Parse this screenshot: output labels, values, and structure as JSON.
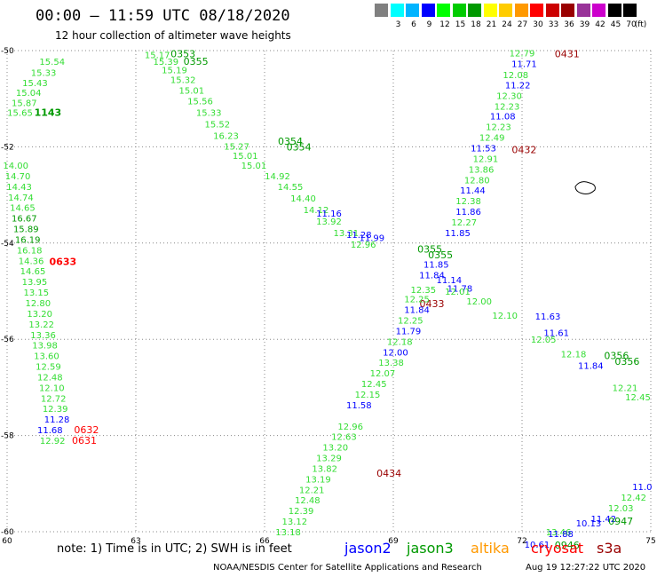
{
  "header": {
    "title": "00:00 – 11:59 UTC 08/18/2020",
    "subtitle": "12 hour collection of altimeter wave heights"
  },
  "legend": {
    "unit": "(ft)",
    "bins": [
      {
        "label": "",
        "color": "#808080"
      },
      {
        "label": "3",
        "color": "#00ffff"
      },
      {
        "label": "6",
        "color": "#00b4ff"
      },
      {
        "label": "9",
        "color": "#0000ff"
      },
      {
        "label": "12",
        "color": "#00ff00"
      },
      {
        "label": "15",
        "color": "#00cc00"
      },
      {
        "label": "18",
        "color": "#009900"
      },
      {
        "label": "21",
        "color": "#ffff00"
      },
      {
        "label": "24",
        "color": "#ffcc00"
      },
      {
        "label": "27",
        "color": "#ff9900"
      },
      {
        "label": "30",
        "color": "#ff0000"
      },
      {
        "label": "33",
        "color": "#cc0000"
      },
      {
        "label": "36",
        "color": "#990000"
      },
      {
        "label": "39",
        "color": "#993399"
      },
      {
        "label": "42",
        "color": "#cc00cc"
      },
      {
        "label": "45",
        "color": "#000000"
      },
      {
        "label": "70",
        "color": "#000000"
      }
    ]
  },
  "axes": {
    "lon_ticks": [
      "60",
      "63",
      "66",
      "69",
      "72",
      "75"
    ],
    "lat_ticks": [
      "-50",
      "-52",
      "-54",
      "-56",
      "-58",
      "-60"
    ],
    "lon_range": [
      60,
      75
    ],
    "lat_range": [
      -60,
      -50
    ]
  },
  "colors": {
    "jason2": "#0000ff",
    "jason3": "#009900",
    "altika": "#ff9900",
    "cryosat": "#ff0000",
    "s3a": "#990000",
    "light": "#33dd33"
  },
  "tracks": [
    {
      "color": "light",
      "pts": [
        {
          "lon": 61.05,
          "lat": -50.22,
          "v": "15.54"
        },
        {
          "lon": 60.85,
          "lat": -50.45,
          "v": "15.33"
        },
        {
          "lon": 60.65,
          "lat": -50.66,
          "v": "15.43"
        },
        {
          "lon": 60.5,
          "lat": -50.87,
          "v": "15.04"
        },
        {
          "lon": 60.4,
          "lat": -51.08,
          "v": "15.87"
        },
        {
          "lon": 60.3,
          "lat": -51.28,
          "v": "15.65"
        }
      ]
    },
    {
      "color": "jason3",
      "pts": [
        {
          "lon": 60.95,
          "lat": -51.28,
          "v": "1143",
          "bold": true
        }
      ]
    },
    {
      "color": "light",
      "pts": [
        {
          "lon": 60.2,
          "lat": -52.38,
          "v": "14.00"
        },
        {
          "lon": 60.25,
          "lat": -52.6,
          "v": "14.70"
        },
        {
          "lon": 60.28,
          "lat": -52.82,
          "v": "14.43"
        },
        {
          "lon": 60.32,
          "lat": -53.04,
          "v": "14.74"
        },
        {
          "lon": 60.36,
          "lat": -53.26,
          "v": "14.65"
        }
      ]
    },
    {
      "color": "jason3",
      "pts": [
        {
          "lon": 60.4,
          "lat": -53.48,
          "v": "16.67"
        },
        {
          "lon": 60.44,
          "lat": -53.7,
          "v": "15.89"
        },
        {
          "lon": 60.48,
          "lat": -53.92,
          "v": "16.19"
        }
      ]
    },
    {
      "color": "light",
      "pts": [
        {
          "lon": 60.52,
          "lat": -54.14,
          "v": "16.18"
        },
        {
          "lon": 60.56,
          "lat": -54.36,
          "v": "14.36"
        },
        {
          "lon": 60.6,
          "lat": -54.58,
          "v": "14.65"
        },
        {
          "lon": 60.64,
          "lat": -54.8,
          "v": "13.95"
        },
        {
          "lon": 60.68,
          "lat": -55.02,
          "v": "13.15"
        },
        {
          "lon": 60.72,
          "lat": -55.24,
          "v": "12.80"
        },
        {
          "lon": 60.76,
          "lat": -55.46,
          "v": "13.20"
        },
        {
          "lon": 60.8,
          "lat": -55.68,
          "v": "13.22"
        },
        {
          "lon": 60.84,
          "lat": -55.9,
          "v": "13.36"
        },
        {
          "lon": 60.88,
          "lat": -56.12,
          "v": "13.98"
        },
        {
          "lon": 60.92,
          "lat": -56.34,
          "v": "13.60"
        },
        {
          "lon": 60.96,
          "lat": -56.56,
          "v": "12.59"
        },
        {
          "lon": 61.0,
          "lat": -56.78,
          "v": "12.48"
        },
        {
          "lon": 61.04,
          "lat": -57.0,
          "v": "12.10"
        },
        {
          "lon": 61.08,
          "lat": -57.22,
          "v": "12.72"
        },
        {
          "lon": 61.12,
          "lat": -57.44,
          "v": "12.39"
        }
      ]
    },
    {
      "color": "jason2",
      "pts": [
        {
          "lon": 61.16,
          "lat": -57.66,
          "v": "11.28"
        },
        {
          "lon": 61.0,
          "lat": -57.88,
          "v": "11.68"
        }
      ]
    },
    {
      "color": "light",
      "pts": [
        {
          "lon": 61.06,
          "lat": -58.1,
          "v": "12.92"
        }
      ]
    },
    {
      "color": "cryosat",
      "pts": [
        {
          "lon": 61.3,
          "lat": -54.38,
          "v": "0633",
          "bold": true
        },
        {
          "lon": 61.85,
          "lat": -57.88,
          "v": "0632"
        },
        {
          "lon": 61.8,
          "lat": -58.1,
          "v": "0631"
        }
      ]
    },
    {
      "color": "light",
      "pts": [
        {
          "lon": 63.5,
          "lat": -50.08,
          "v": "15.17"
        },
        {
          "lon": 63.7,
          "lat": -50.22,
          "v": "15.39"
        },
        {
          "lon": 63.9,
          "lat": -50.4,
          "v": "15.19"
        },
        {
          "lon": 64.1,
          "lat": -50.6,
          "v": "15.32"
        },
        {
          "lon": 64.3,
          "lat": -50.82,
          "v": "15.01"
        },
        {
          "lon": 64.5,
          "lat": -51.04,
          "v": "15.56"
        },
        {
          "lon": 64.7,
          "lat": -51.28,
          "v": "15.33"
        },
        {
          "lon": 64.9,
          "lat": -51.52,
          "v": "15.52"
        },
        {
          "lon": 65.1,
          "lat": -51.76,
          "v": "16.23"
        },
        {
          "lon": 65.35,
          "lat": -51.98,
          "v": "15.27"
        },
        {
          "lon": 65.55,
          "lat": -52.18,
          "v": "15.01"
        },
        {
          "lon": 65.75,
          "lat": -52.38,
          "v": "15.01"
        }
      ]
    },
    {
      "color": "jason3",
      "pts": [
        {
          "lon": 64.1,
          "lat": -50.06,
          "v": "0353"
        },
        {
          "lon": 64.4,
          "lat": -50.22,
          "v": "0355"
        },
        {
          "lon": 66.6,
          "lat": -51.88,
          "v": "0354"
        },
        {
          "lon": 66.8,
          "lat": -52.0,
          "v": "0354"
        }
      ]
    },
    {
      "color": "light",
      "pts": [
        {
          "lon": 66.3,
          "lat": -52.6,
          "v": "14.92"
        },
        {
          "lon": 66.6,
          "lat": -52.82,
          "v": "14.55"
        },
        {
          "lon": 66.9,
          "lat": -53.06,
          "v": "14.40"
        },
        {
          "lon": 67.2,
          "lat": -53.3,
          "v": "14.12"
        },
        {
          "lon": 67.5,
          "lat": -53.54,
          "v": "13.92"
        },
        {
          "lon": 67.9,
          "lat": -53.78,
          "v": "13.31"
        },
        {
          "lon": 68.3,
          "lat": -54.02,
          "v": "12.96"
        }
      ]
    },
    {
      "color": "jason2",
      "pts": [
        {
          "lon": 67.5,
          "lat": -53.38,
          "v": "11.16"
        },
        {
          "lon": 68.2,
          "lat": -53.82,
          "v": "11.28"
        },
        {
          "lon": 68.5,
          "lat": -53.88,
          "v": "11.99"
        }
      ]
    },
    {
      "color": "light",
      "pts": [
        {
          "lon": 72.0,
          "lat": -50.05,
          "v": "12.79"
        },
        {
          "lon": 71.85,
          "lat": -50.5,
          "v": "12.08"
        },
        {
          "lon": 71.7,
          "lat": -50.93,
          "v": "12.30"
        },
        {
          "lon": 71.65,
          "lat": -51.15,
          "v": "12.23"
        },
        {
          "lon": 71.45,
          "lat": -51.58,
          "v": "12.23"
        },
        {
          "lon": 71.3,
          "lat": -51.8,
          "v": "12.49"
        },
        {
          "lon": 71.15,
          "lat": -52.24,
          "v": "12.91"
        },
        {
          "lon": 71.05,
          "lat": -52.46,
          "v": "13.86"
        },
        {
          "lon": 70.95,
          "lat": -52.68,
          "v": "12.80"
        },
        {
          "lon": 70.75,
          "lat": -53.12,
          "v": "12.38"
        },
        {
          "lon": 70.65,
          "lat": -53.56,
          "v": "12.27"
        }
      ]
    },
    {
      "color": "jason2",
      "pts": [
        {
          "lon": 72.05,
          "lat": -50.27,
          "v": "11.71"
        },
        {
          "lon": 71.9,
          "lat": -50.71,
          "v": "11.22"
        },
        {
          "lon": 71.55,
          "lat": -51.36,
          "v": "11.08"
        },
        {
          "lon": 71.1,
          "lat": -52.02,
          "v": "11.53"
        },
        {
          "lon": 70.85,
          "lat": -52.9,
          "v": "11.44"
        },
        {
          "lon": 70.75,
          "lat": -53.34,
          "v": "11.86"
        },
        {
          "lon": 70.5,
          "lat": -53.78,
          "v": "11.85"
        }
      ]
    },
    {
      "color": "s3a",
      "pts": [
        {
          "lon": 73.05,
          "lat": -50.06,
          "v": "0431"
        },
        {
          "lon": 72.05,
          "lat": -52.06,
          "v": "0432"
        },
        {
          "lon": 69.9,
          "lat": -55.26,
          "v": "0433"
        },
        {
          "lon": 68.9,
          "lat": -58.78,
          "v": "0434"
        }
      ]
    },
    {
      "color": "jason3",
      "pts": [
        {
          "lon": 69.85,
          "lat": -54.12,
          "v": "0355"
        },
        {
          "lon": 70.1,
          "lat": -54.24,
          "v": "0355"
        },
        {
          "lon": 74.2,
          "lat": -56.34,
          "v": "0356"
        },
        {
          "lon": 74.45,
          "lat": -56.46,
          "v": "0356"
        }
      ]
    },
    {
      "color": "jason2",
      "pts": [
        {
          "lon": 70.0,
          "lat": -54.44,
          "v": "11.85"
        },
        {
          "lon": 69.9,
          "lat": -54.66,
          "v": "11.84"
        },
        {
          "lon": 70.3,
          "lat": -54.76,
          "v": "11.14"
        },
        {
          "lon": 70.55,
          "lat": -54.94,
          "v": "11.78"
        },
        {
          "lon": 69.55,
          "lat": -55.38,
          "v": "11.84"
        },
        {
          "lon": 69.35,
          "lat": -55.82,
          "v": "11.79"
        },
        {
          "lon": 72.6,
          "lat": -55.52,
          "v": "11.63"
        },
        {
          "lon": 72.8,
          "lat": -55.86,
          "v": "11.61"
        },
        {
          "lon": 73.6,
          "lat": -56.54,
          "v": "11.84"
        }
      ]
    },
    {
      "color": "light",
      "pts": [
        {
          "lon": 69.7,
          "lat": -54.96,
          "v": "12.35"
        },
        {
          "lon": 69.55,
          "lat": -55.16,
          "v": "12.25"
        },
        {
          "lon": 69.4,
          "lat": -55.6,
          "v": "12.25"
        },
        {
          "lon": 69.15,
          "lat": -56.04,
          "v": "12.18"
        },
        {
          "lon": 70.5,
          "lat": -55.0,
          "v": "12.01"
        },
        {
          "lon": 71.0,
          "lat": -55.2,
          "v": "12.00"
        },
        {
          "lon": 71.6,
          "lat": -55.5,
          "v": "12.10"
        },
        {
          "lon": 72.5,
          "lat": -56.0,
          "v": "12.05"
        },
        {
          "lon": 73.2,
          "lat": -56.3,
          "v": "12.18"
        },
        {
          "lon": 74.4,
          "lat": -57.0,
          "v": "12.21"
        },
        {
          "lon": 74.7,
          "lat": -57.2,
          "v": "12.45"
        }
      ]
    },
    {
      "color": "light",
      "pts": [
        {
          "lon": 68.95,
          "lat": -56.48,
          "v": "13.38"
        },
        {
          "lon": 68.75,
          "lat": -56.7,
          "v": "12.07"
        },
        {
          "lon": 68.55,
          "lat": -56.92,
          "v": "12.45"
        },
        {
          "lon": 68.4,
          "lat": -57.14,
          "v": "12.15"
        },
        {
          "lon": 68.0,
          "lat": -57.8,
          "v": "12.96"
        },
        {
          "lon": 67.85,
          "lat": -58.02,
          "v": "12.63"
        },
        {
          "lon": 67.65,
          "lat": -58.24,
          "v": "13.20"
        },
        {
          "lon": 67.5,
          "lat": -58.46,
          "v": "13.29"
        },
        {
          "lon": 67.4,
          "lat": -58.68,
          "v": "13.82"
        },
        {
          "lon": 67.25,
          "lat": -58.9,
          "v": "13.19"
        },
        {
          "lon": 67.1,
          "lat": -59.12,
          "v": "12.21"
        },
        {
          "lon": 67.0,
          "lat": -59.34,
          "v": "12.48"
        },
        {
          "lon": 66.85,
          "lat": -59.56,
          "v": "12.39"
        },
        {
          "lon": 66.7,
          "lat": -59.78,
          "v": "13.12"
        },
        {
          "lon": 66.55,
          "lat": -60.0,
          "v": "13.18"
        }
      ]
    },
    {
      "color": "jason2",
      "pts": [
        {
          "lon": 69.05,
          "lat": -56.26,
          "v": "12.00"
        },
        {
          "lon": 68.2,
          "lat": -57.36,
          "v": "11.58"
        }
      ]
    },
    {
      "color": "light",
      "pts": [
        {
          "lon": 74.6,
          "lat": -59.28,
          "v": "12.42"
        },
        {
          "lon": 74.3,
          "lat": -59.5,
          "v": "12.03"
        },
        {
          "lon": 72.85,
          "lat": -60.0,
          "v": "13.46"
        }
      ]
    },
    {
      "color": "jason2",
      "pts": [
        {
          "lon": 74.8,
          "lat": -59.06,
          "v": "11.0"
        },
        {
          "lon": 73.9,
          "lat": -59.72,
          "v": "11.42"
        },
        {
          "lon": 73.55,
          "lat": -59.82,
          "v": "10.13"
        },
        {
          "lon": 72.9,
          "lat": -60.04,
          "v": "11.88"
        },
        {
          "lon": 72.35,
          "lat": -60.26,
          "v": "10.61"
        }
      ]
    },
    {
      "color": "jason3",
      "pts": [
        {
          "lon": 74.3,
          "lat": -59.78,
          "v": "0947"
        },
        {
          "lon": 73.05,
          "lat": -60.28,
          "v": "0946"
        }
      ]
    }
  ],
  "footer": {
    "note": "note: 1) Time is in UTC; 2) SWH is in feet",
    "satellites": [
      {
        "name": "jason2",
        "color": "#0000ff"
      },
      {
        "name": "jason3",
        "color": "#009900"
      },
      {
        "name": "altika",
        "color": "#ff9900"
      },
      {
        "name": "cryosat",
        "color": "#ff0000"
      },
      {
        "name": "s3a",
        "color": "#990000"
      }
    ],
    "credit": "NOAA/NESDIS Center for Satellite Applications and Research",
    "timestamp": "Aug 19 12:27:22 UTC 2020"
  }
}
